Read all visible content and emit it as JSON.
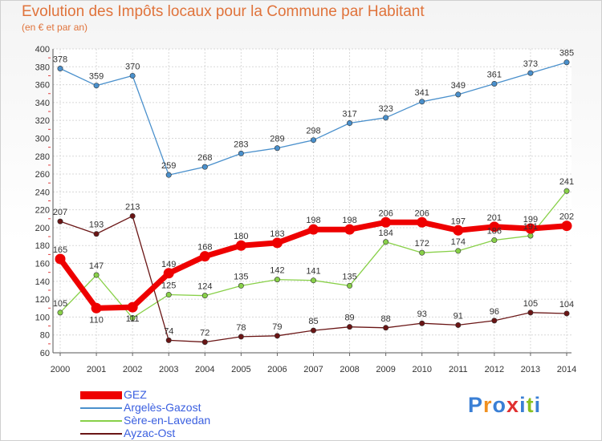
{
  "chart_data": {
    "type": "line",
    "title": "Evolution des Impôts locaux pour la Commune par Habitant",
    "subtitle": "(en € et par an)",
    "xlabel": "",
    "ylabel": "",
    "ylim": [
      60,
      400
    ],
    "yticks": [
      60,
      80,
      100,
      120,
      140,
      160,
      180,
      200,
      220,
      240,
      260,
      280,
      300,
      320,
      340,
      360,
      380,
      400
    ],
    "categories": [
      "2000",
      "2001",
      "2002",
      "2003",
      "2004",
      "2005",
      "2006",
      "2007",
      "2008",
      "2009",
      "2010",
      "2011",
      "2012",
      "2013",
      "2014"
    ],
    "grid": true,
    "legend_position": "bottom-left",
    "series": [
      {
        "name": "GEZ",
        "color": "#ee0000",
        "emphasis": true,
        "values": [
          165,
          110,
          111,
          149,
          168,
          180,
          183,
          198,
          198,
          206,
          206,
          197,
          201,
          199,
          202
        ]
      },
      {
        "name": "Argelès-Gazost",
        "color": "#4a90cc",
        "emphasis": false,
        "values": [
          378,
          359,
          370,
          259,
          268,
          283,
          289,
          298,
          317,
          323,
          341,
          349,
          361,
          373,
          385
        ]
      },
      {
        "name": "Sère-en-Lavedan",
        "color": "#88d048",
        "emphasis": false,
        "values": [
          105,
          147,
          99,
          125,
          124,
          135,
          142,
          141,
          135,
          184,
          172,
          174,
          186,
          191,
          241
        ]
      },
      {
        "name": "Ayzac-Ost",
        "color": "#6a1515",
        "emphasis": false,
        "values": [
          207,
          193,
          213,
          74,
          72,
          78,
          79,
          85,
          89,
          88,
          93,
          91,
          96,
          105,
          104
        ]
      }
    ]
  },
  "data_labels": {
    "GEZ": [
      "165",
      "110",
      "111",
      "149",
      "168",
      "180",
      "183",
      "198",
      "198",
      "206",
      "206",
      "197",
      "201",
      "199",
      "202"
    ],
    "Argelès-Gazost": [
      "378",
      "359",
      "370",
      "259",
      "268",
      "283",
      "289",
      "298",
      "317",
      "323",
      "341",
      "349",
      "361",
      "373",
      "385"
    ],
    "Sère-en-Lavedan": [
      "105",
      "147",
      "",
      "125",
      "124",
      "135",
      "142",
      "141",
      "135",
      "184",
      "172",
      "174",
      "186",
      "191",
      "241"
    ],
    "Ayzac-Ost": [
      "207",
      "193",
      "213",
      "74",
      "72",
      "78",
      "79",
      "85",
      "89",
      "88",
      "93",
      "91",
      "96",
      "105",
      "104"
    ]
  },
  "brand": {
    "text": "Proxiti",
    "letters": [
      "P",
      "r",
      "o",
      "x",
      "i",
      "t",
      "i"
    ],
    "colors": [
      "#3a7fd5",
      "#f09020",
      "#3a7fd5",
      "#e03030",
      "#3a7fd5",
      "#88c020",
      "#3a7fd5"
    ]
  }
}
